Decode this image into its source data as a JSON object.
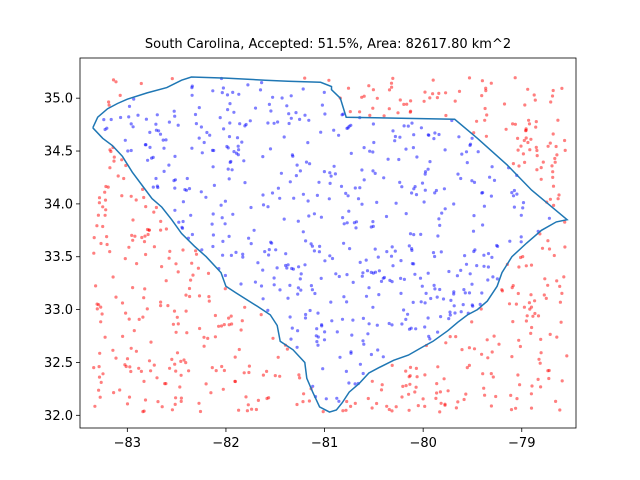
{
  "chart_data": {
    "type": "scatter",
    "title": "South Carolina, Accepted: 51.5%, Area: 82617.80 km^2",
    "xlabel": "",
    "ylabel": "",
    "xlim": [
      -83.48,
      -78.45
    ],
    "ylim": [
      31.88,
      35.38
    ],
    "x_ticks": [
      {
        "value": -83,
        "label": "−83"
      },
      {
        "value": -82,
        "label": "−82"
      },
      {
        "value": -81,
        "label": "−81"
      },
      {
        "value": -80,
        "label": "−80"
      },
      {
        "value": -79,
        "label": "−79"
      }
    ],
    "y_ticks": [
      {
        "value": 32.0,
        "label": "32.0"
      },
      {
        "value": 32.5,
        "label": "32.5"
      },
      {
        "value": 33.0,
        "label": "33.0"
      },
      {
        "value": 33.5,
        "label": "33.5"
      },
      {
        "value": 34.0,
        "label": "34.0"
      },
      {
        "value": 34.5,
        "label": "34.5"
      },
      {
        "value": 35.0,
        "label": "35.0"
      }
    ],
    "grid": false,
    "legend": "none",
    "colors": {
      "accepted": "#0000ff",
      "rejected": "#ff0000",
      "outline": "#1f77b4"
    },
    "acceptance_rate": 0.515,
    "sample_count": 1000,
    "outline_lonlat": [
      [
        -83.35,
        34.72
      ],
      [
        -83.3,
        34.82
      ],
      [
        -83.2,
        34.9
      ],
      [
        -83.1,
        34.95
      ],
      [
        -83.0,
        34.99
      ],
      [
        -82.8,
        35.05
      ],
      [
        -82.6,
        35.1
      ],
      [
        -82.45,
        35.17
      ],
      [
        -82.35,
        35.2
      ],
      [
        -82.0,
        35.19
      ],
      [
        -81.6,
        35.17
      ],
      [
        -81.37,
        35.16
      ],
      [
        -81.04,
        35.15
      ],
      [
        -80.93,
        35.11
      ],
      [
        -80.93,
        35.08
      ],
      [
        -80.84,
        35.0
      ],
      [
        -80.78,
        34.82
      ],
      [
        -79.68,
        34.8
      ],
      [
        -79.45,
        34.62
      ],
      [
        -79.15,
        34.37
      ],
      [
        -78.9,
        34.13
      ],
      [
        -78.54,
        33.85
      ],
      [
        -78.65,
        33.83
      ],
      [
        -78.8,
        33.75
      ],
      [
        -78.95,
        33.63
      ],
      [
        -79.1,
        33.5
      ],
      [
        -79.2,
        33.35
      ],
      [
        -79.25,
        33.22
      ],
      [
        -79.35,
        33.08
      ],
      [
        -79.45,
        33.0
      ],
      [
        -79.55,
        32.95
      ],
      [
        -79.65,
        32.88
      ],
      [
        -79.75,
        32.8
      ],
      [
        -79.9,
        32.7
      ],
      [
        -80.0,
        32.65
      ],
      [
        -80.15,
        32.57
      ],
      [
        -80.3,
        32.52
      ],
      [
        -80.45,
        32.45
      ],
      [
        -80.55,
        32.4
      ],
      [
        -80.65,
        32.3
      ],
      [
        -80.75,
        32.22
      ],
      [
        -80.82,
        32.12
      ],
      [
        -80.88,
        32.05
      ],
      [
        -80.95,
        32.03
      ],
      [
        -81.05,
        32.08
      ],
      [
        -81.12,
        32.22
      ],
      [
        -81.18,
        32.35
      ],
      [
        -81.2,
        32.5
      ],
      [
        -81.32,
        32.62
      ],
      [
        -81.45,
        32.7
      ],
      [
        -81.48,
        32.85
      ],
      [
        -81.55,
        32.95
      ],
      [
        -81.68,
        33.03
      ],
      [
        -81.8,
        33.1
      ],
      [
        -81.9,
        33.16
      ],
      [
        -82.0,
        33.22
      ],
      [
        -82.05,
        33.35
      ],
      [
        -82.2,
        33.5
      ],
      [
        -82.32,
        33.6
      ],
      [
        -82.45,
        33.72
      ],
      [
        -82.55,
        33.85
      ],
      [
        -82.65,
        33.97
      ],
      [
        -82.75,
        34.05
      ],
      [
        -82.83,
        34.15
      ],
      [
        -82.95,
        34.3
      ],
      [
        -83.05,
        34.45
      ],
      [
        -83.15,
        34.55
      ],
      [
        -83.25,
        34.62
      ],
      [
        -83.35,
        34.72
      ]
    ]
  }
}
